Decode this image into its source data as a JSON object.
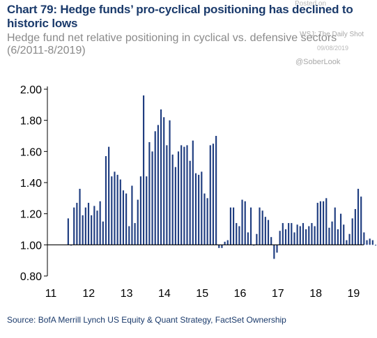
{
  "title": "Chart 79: Hedge funds’ pro-cyclical positioning has declined to historic lows",
  "subtitle": "Hedge fund net relative positioning in cyclical vs. defensive sectors (6/2011-8/2019)",
  "watermark": {
    "line1": "Posted on",
    "line2": "WSJ: The Daily Shot",
    "line3": "09/08/2019",
    "line4": "@SoberLook"
  },
  "source": "Source:  BofA Merrill Lynch US Equity & Quant Strategy, FactSet Ownership",
  "colors": {
    "bar": "#1f3d80",
    "title": "#1a3a6b",
    "subtitle": "#8a8a8a",
    "axis": "#000000"
  },
  "chart_data": {
    "type": "bar",
    "baseline": 1.0,
    "ylim": [
      0.8,
      2.0
    ],
    "yticks": [
      "2.00",
      "1.80",
      "1.60",
      "1.40",
      "1.20",
      "1.00",
      "0.80"
    ],
    "ytick_values": [
      2.0,
      1.8,
      1.6,
      1.4,
      1.2,
      1.0,
      0.8
    ],
    "xticks": [
      "11",
      "12",
      "13",
      "14",
      "15",
      "16",
      "17",
      "18",
      "19"
    ],
    "x_start": 2011.42,
    "x_end": 2019.62,
    "values": [
      1.17,
      1.0,
      1.24,
      1.27,
      1.36,
      1.19,
      1.24,
      1.27,
      1.19,
      1.25,
      1.22,
      1.28,
      1.15,
      1.57,
      1.63,
      1.44,
      1.47,
      1.45,
      1.42,
      1.35,
      1.33,
      1.12,
      1.38,
      1.14,
      1.29,
      1.44,
      1.96,
      1.44,
      1.66,
      1.6,
      1.73,
      1.77,
      1.87,
      1.82,
      1.64,
      1.8,
      1.58,
      1.5,
      1.6,
      1.64,
      1.63,
      1.64,
      1.54,
      1.67,
      1.46,
      1.45,
      1.47,
      1.33,
      1.3,
      1.64,
      1.65,
      1.7,
      0.98,
      0.98,
      1.02,
      1.03,
      1.24,
      1.24,
      1.14,
      1.12,
      1.29,
      1.28,
      1.08,
      1.24,
      1.0,
      1.07,
      1.24,
      1.22,
      1.18,
      1.16,
      1.05,
      0.91,
      0.95,
      1.09,
      1.14,
      1.1,
      1.14,
      1.14,
      1.08,
      1.13,
      1.12,
      1.14,
      1.1,
      1.12,
      1.14,
      1.12,
      1.27,
      1.28,
      1.28,
      1.3,
      1.11,
      1.15,
      1.24,
      1.1,
      1.2,
      1.13,
      1.03,
      1.07,
      1.17,
      1.23,
      1.36,
      1.31,
      1.08,
      1.03,
      1.04,
      1.03,
      1.0
    ]
  }
}
